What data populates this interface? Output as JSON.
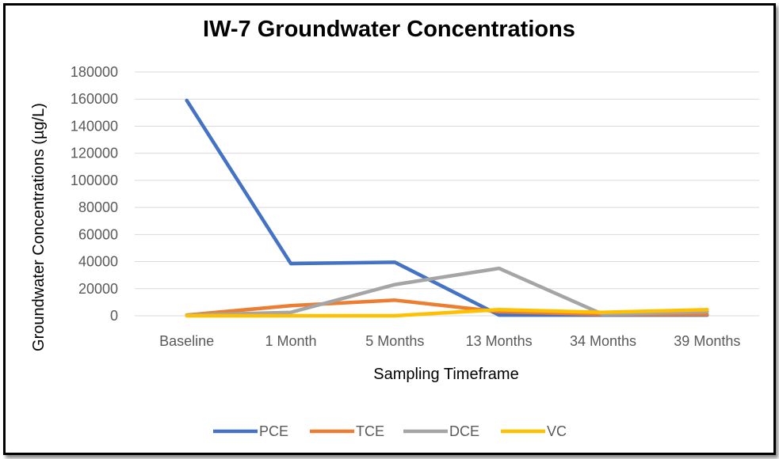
{
  "chart_data": {
    "type": "line",
    "title": "IW-7 Groundwater Concentrations",
    "xlabel": "Sampling Timeframe",
    "ylabel": "Groundwater Concentrations (µg/L)",
    "categories": [
      "Baseline",
      "1 Month",
      "5 Months",
      "13 Months",
      "34 Months",
      "39 Months"
    ],
    "ylim": [
      0,
      180000
    ],
    "yticks": [
      0,
      20000,
      40000,
      60000,
      80000,
      100000,
      120000,
      140000,
      160000,
      180000
    ],
    "grid": true,
    "legend_position": "bottom",
    "series": [
      {
        "name": "PCE",
        "color": "#4472c4",
        "values": [
          159000,
          38500,
          39500,
          500,
          500,
          500
        ]
      },
      {
        "name": "TCE",
        "color": "#ed7d31",
        "values": [
          500,
          7500,
          11500,
          3000,
          1000,
          1000
        ]
      },
      {
        "name": "DCE",
        "color": "#a5a5a5",
        "values": [
          500,
          2500,
          23000,
          35000,
          1000,
          3000
        ]
      },
      {
        "name": "VC",
        "color": "#ffc000",
        "values": [
          0,
          0,
          0,
          4500,
          2500,
          4500
        ]
      }
    ]
  }
}
